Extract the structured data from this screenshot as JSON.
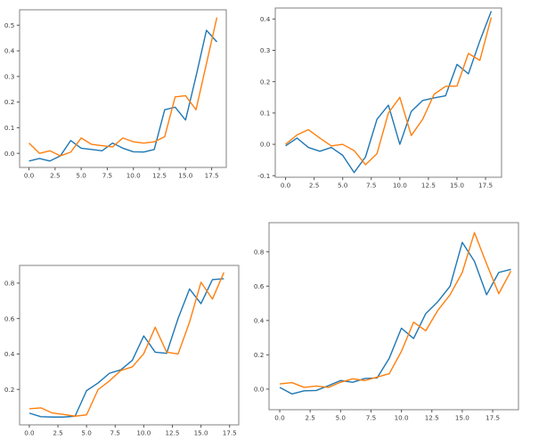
{
  "page": {
    "background_color": "#ffffff",
    "description": "Figure with four untitled line subplots, each showing two series"
  },
  "colors": {
    "series_blue": "#1f77b4",
    "series_orange": "#ff7f0e",
    "spine": "#808080",
    "tick_label": "#3c3c3c"
  },
  "chart_data": [
    {
      "id": "top-left",
      "type": "line",
      "title": "",
      "xlabel": "",
      "ylabel": "",
      "grid": false,
      "legend": "none",
      "x": [
        0,
        1,
        2,
        3,
        4,
        5,
        6,
        7,
        8,
        9,
        10,
        11,
        12,
        13,
        14,
        15,
        16,
        17,
        18
      ],
      "series": [
        {
          "name": "blue",
          "color": "#1f77b4",
          "values": [
            -0.03,
            -0.02,
            -0.03,
            -0.01,
            0.05,
            0.02,
            0.015,
            0.01,
            0.04,
            0.02,
            0.006,
            0.005,
            0.015,
            0.17,
            0.18,
            0.13,
            0.3,
            0.48,
            0.435
          ]
        },
        {
          "name": "orange",
          "color": "#ff7f0e",
          "values": [
            0.04,
            0.0,
            0.01,
            -0.01,
            0.005,
            0.06,
            0.035,
            0.03,
            0.025,
            0.06,
            0.045,
            0.04,
            0.045,
            0.065,
            0.22,
            0.225,
            0.17,
            0.35,
            0.53
          ]
        }
      ],
      "xticks": [
        0.0,
        2.5,
        5.0,
        7.5,
        10.0,
        12.5,
        15.0,
        17.5
      ],
      "yticks": [
        0.0,
        0.1,
        0.2,
        0.3,
        0.4,
        0.5
      ],
      "xlim": [
        -0.9,
        18.9
      ],
      "ylim": [
        -0.055,
        0.56
      ]
    },
    {
      "id": "top-right",
      "type": "line",
      "title": "",
      "xlabel": "",
      "ylabel": "",
      "grid": false,
      "legend": "none",
      "x": [
        0,
        1,
        2,
        3,
        4,
        5,
        6,
        7,
        8,
        9,
        10,
        11,
        12,
        13,
        14,
        15,
        16,
        17,
        18
      ],
      "series": [
        {
          "name": "blue",
          "color": "#1f77b4",
          "values": [
            -0.005,
            0.02,
            -0.01,
            -0.022,
            -0.01,
            -0.035,
            -0.09,
            -0.04,
            0.08,
            0.125,
            0.0,
            0.105,
            0.14,
            0.148,
            0.155,
            0.255,
            0.225,
            0.33,
            0.425
          ]
        },
        {
          "name": "orange",
          "color": "#ff7f0e",
          "values": [
            0.0,
            0.03,
            0.047,
            0.02,
            -0.005,
            0.0,
            -0.02,
            -0.065,
            -0.03,
            0.1,
            0.15,
            0.028,
            0.08,
            0.16,
            0.185,
            0.186,
            0.29,
            0.268,
            0.405
          ]
        }
      ],
      "xticks": [
        0.0,
        2.5,
        5.0,
        7.5,
        10.0,
        12.5,
        15.0,
        17.5
      ],
      "yticks": [
        -0.1,
        0.0,
        0.1,
        0.2,
        0.3,
        0.4
      ],
      "xlim": [
        -0.9,
        18.9
      ],
      "ylim": [
        -0.105,
        0.435
      ]
    },
    {
      "id": "bottom-left",
      "type": "line",
      "title": "",
      "xlabel": "",
      "ylabel": "",
      "grid": false,
      "legend": "none",
      "x": [
        0,
        1,
        2,
        3,
        4,
        5,
        6,
        7,
        8,
        9,
        10,
        11,
        12,
        13,
        14,
        15,
        16,
        17
      ],
      "series": [
        {
          "name": "blue",
          "color": "#1f77b4",
          "values": [
            0.066,
            0.046,
            0.044,
            0.044,
            0.049,
            0.193,
            0.236,
            0.291,
            0.311,
            0.364,
            0.502,
            0.41,
            0.404,
            0.601,
            0.767,
            0.684,
            0.82,
            0.825
          ]
        },
        {
          "name": "orange",
          "color": "#ff7f0e",
          "values": [
            0.091,
            0.096,
            0.067,
            0.059,
            0.049,
            0.056,
            0.198,
            0.248,
            0.307,
            0.327,
            0.402,
            0.551,
            0.41,
            0.4,
            0.58,
            0.805,
            0.71,
            0.86
          ]
        }
      ],
      "xticks": [
        0.0,
        2.5,
        5.0,
        7.5,
        10.0,
        12.5,
        15.0,
        17.5
      ],
      "yticks": [
        0.2,
        0.4,
        0.6,
        0.8
      ],
      "xlim": [
        -0.85,
        18.3
      ],
      "ylim": [
        0.0,
        0.9
      ]
    },
    {
      "id": "bottom-right",
      "type": "line",
      "title": "",
      "xlabel": "",
      "ylabel": "",
      "grid": false,
      "legend": "none",
      "x": [
        0,
        1,
        2,
        3,
        4,
        5,
        6,
        7,
        8,
        9,
        10,
        11,
        12,
        13,
        14,
        15,
        16,
        17,
        18,
        19
      ],
      "series": [
        {
          "name": "blue",
          "color": "#1f77b4",
          "values": [
            0.01,
            -0.028,
            -0.01,
            -0.008,
            0.02,
            0.05,
            0.04,
            0.062,
            0.065,
            0.18,
            0.355,
            0.295,
            0.44,
            0.51,
            0.6,
            0.855,
            0.745,
            0.55,
            0.68,
            0.698
          ]
        },
        {
          "name": "orange",
          "color": "#ff7f0e",
          "values": [
            0.03,
            0.038,
            0.01,
            0.018,
            0.01,
            0.04,
            0.06,
            0.05,
            0.07,
            0.09,
            0.22,
            0.39,
            0.34,
            0.46,
            0.55,
            0.68,
            0.912,
            0.73,
            0.556,
            0.688
          ]
        }
      ],
      "xticks": [
        0.0,
        2.5,
        5.0,
        7.5,
        10.0,
        12.5,
        15.0,
        17.5
      ],
      "yticks": [
        0.0,
        0.2,
        0.4,
        0.6,
        0.8
      ],
      "xlim": [
        -0.88,
        19.62
      ],
      "ylim": [
        -0.12,
        0.97
      ]
    }
  ]
}
